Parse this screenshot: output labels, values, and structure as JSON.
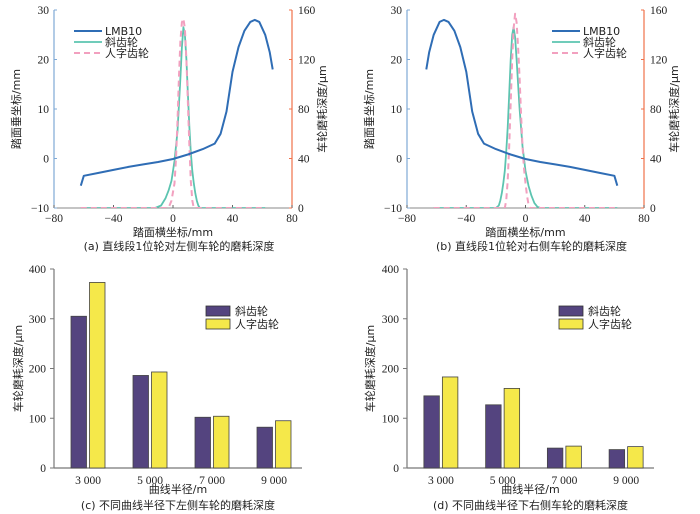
{
  "colors": {
    "lmb10": "#2f6db5",
    "helical": "#5cc4b0",
    "herringbone": "#f2a0bf",
    "left_axis": "#7fa9d6",
    "right_axis": "#f0714a",
    "bar_helical": "#54447f",
    "bar_herringbone": "#f5e84a",
    "bar_axis": "#555555"
  },
  "chart_data": [
    {
      "id": "a",
      "type": "line",
      "caption": "(a)   直线段1位轮对左侧车轮的磨耗深度",
      "xlabel": "踏面横坐标/mm",
      "ylabel": "踏面垂坐标/mm",
      "y2label": "车轮磨耗深度/μm",
      "xlim": [
        -80,
        80
      ],
      "ylim": [
        -10,
        30
      ],
      "y2lim": [
        0,
        160
      ],
      "xticks": [
        "-80",
        "-40",
        "0",
        "40",
        "80"
      ],
      "yticks": [
        "-10",
        "0",
        "10",
        "20",
        "30"
      ],
      "y2ticks": [
        "0",
        "40",
        "80",
        "120",
        "160"
      ],
      "legend_position": "top-left",
      "series": [
        {
          "name": "LMB10",
          "axis": "left",
          "style": "solid",
          "x": [
            -62,
            -60,
            -50,
            -40,
            -30,
            -20,
            -10,
            0,
            10,
            20,
            28,
            32,
            36,
            40,
            44,
            48,
            52,
            55,
            58,
            62,
            65,
            67
          ],
          "y": [
            -5.5,
            -3.5,
            -2.9,
            -2.3,
            -1.7,
            -1.2,
            -0.7,
            -0.1,
            0.8,
            1.9,
            3.0,
            5.0,
            9.5,
            17.5,
            22.5,
            25.8,
            27.6,
            28.0,
            27.6,
            25.0,
            21.5,
            18.0
          ]
        },
        {
          "name": "斜齿轮",
          "axis": "right",
          "style": "solid",
          "x": [
            -62,
            -12,
            -8,
            -5,
            -3,
            -1,
            1,
            3,
            5,
            6,
            7,
            8,
            9,
            10,
            11,
            12,
            13,
            14,
            15,
            16,
            17,
            18,
            20,
            62
          ],
          "y": [
            0,
            0,
            2,
            8,
            14,
            22,
            38,
            62,
            105,
            130,
            146,
            140,
            120,
            92,
            65,
            45,
            30,
            20,
            12,
            6,
            2,
            0,
            0,
            0
          ]
        },
        {
          "name": "人字齿轮",
          "axis": "right",
          "style": "dashed",
          "x": [
            -62,
            -3,
            -1,
            1,
            2,
            3,
            4,
            5,
            6,
            7,
            8,
            9,
            10,
            11,
            12,
            13,
            14,
            62
          ],
          "y": [
            0,
            0,
            6,
            20,
            40,
            70,
            105,
            135,
            150,
            153,
            145,
            120,
            85,
            50,
            22,
            6,
            0,
            0
          ]
        }
      ]
    },
    {
      "id": "b",
      "type": "line",
      "caption": "(b)   直线段1位轮对右侧车轮的磨耗深度",
      "xlabel": "踏面横坐标/mm",
      "ylabel": "踏面垂坐标/mm",
      "y2label": "车轮磨耗深度/μm",
      "xlim": [
        -80,
        80
      ],
      "ylim": [
        -10,
        30
      ],
      "y2lim": [
        0,
        160
      ],
      "xticks": [
        "-80",
        "-40",
        "0",
        "40",
        "80"
      ],
      "yticks": [
        "-10",
        "0",
        "10",
        "20",
        "30"
      ],
      "y2ticks": [
        "0",
        "40",
        "80",
        "120",
        "160"
      ],
      "legend_position": "top-right",
      "series": [
        {
          "name": "LMB10",
          "axis": "left",
          "style": "solid",
          "x": [
            -67,
            -65,
            -62,
            -58,
            -55,
            -52,
            -48,
            -44,
            -40,
            -36,
            -32,
            -28,
            -20,
            -10,
            0,
            10,
            20,
            30,
            40,
            50,
            60,
            62
          ],
          "y": [
            18.0,
            21.5,
            25.0,
            27.6,
            28.0,
            27.6,
            25.8,
            22.5,
            17.5,
            9.5,
            5.0,
            3.0,
            1.9,
            0.8,
            -0.1,
            -0.7,
            -1.2,
            -1.7,
            -2.3,
            -2.9,
            -3.5,
            -5.5
          ]
        },
        {
          "name": "斜齿轮",
          "axis": "right",
          "style": "solid",
          "x": [
            -62,
            -20,
            -18,
            -17,
            -16,
            -15,
            -14,
            -13,
            -12,
            -11,
            -10,
            -9,
            -8,
            -7,
            -6,
            -4,
            -2,
            0,
            2,
            4,
            6,
            8,
            10,
            62
          ],
          "y": [
            0,
            0,
            2,
            6,
            12,
            20,
            30,
            45,
            65,
            92,
            120,
            140,
            146,
            138,
            120,
            80,
            50,
            30,
            18,
            10,
            4,
            1,
            0,
            0
          ]
        },
        {
          "name": "人字齿轮",
          "axis": "right",
          "style": "dashed",
          "x": [
            -62,
            -14,
            -13,
            -12,
            -11,
            -10,
            -9,
            -8,
            -7,
            -6,
            -5,
            -4,
            -3,
            -2,
            -1,
            0,
            1,
            2,
            3,
            62
          ],
          "y": [
            0,
            0,
            6,
            22,
            50,
            85,
            120,
            145,
            157,
            150,
            130,
            105,
            75,
            50,
            32,
            20,
            10,
            3,
            0,
            0
          ]
        }
      ]
    },
    {
      "id": "c",
      "type": "bar",
      "caption": "(c)   不同曲线半径下左侧车轮的磨耗深度",
      "xlabel": "曲线半径/m",
      "ylabel": "车轮磨耗深度/μm",
      "ylim": [
        0,
        400
      ],
      "yticks": [
        "0",
        "100",
        "200",
        "300",
        "400"
      ],
      "categories": [
        "3 000",
        "5 000",
        "7 000",
        "9 000"
      ],
      "legend_position": "top-right",
      "series": [
        {
          "name": "斜齿轮",
          "values": [
            305,
            186,
            102,
            82
          ]
        },
        {
          "name": "人字齿轮",
          "values": [
            373,
            193,
            104,
            95
          ]
        }
      ]
    },
    {
      "id": "d",
      "type": "bar",
      "caption": "(d)   不同曲线半径下右侧车轮的磨耗深度",
      "xlabel": "曲线半径/m",
      "ylabel": "车轮磨耗深度/μm",
      "ylim": [
        0,
        400
      ],
      "yticks": [
        "0",
        "100",
        "200",
        "300",
        "400"
      ],
      "categories": [
        "3 000",
        "5 000",
        "7 000",
        "9 000"
      ],
      "legend_position": "top-right",
      "series": [
        {
          "name": "斜齿轮",
          "values": [
            145,
            127,
            40,
            37
          ]
        },
        {
          "name": "人字齿轮",
          "values": [
            183,
            160,
            44,
            43
          ]
        }
      ]
    }
  ]
}
